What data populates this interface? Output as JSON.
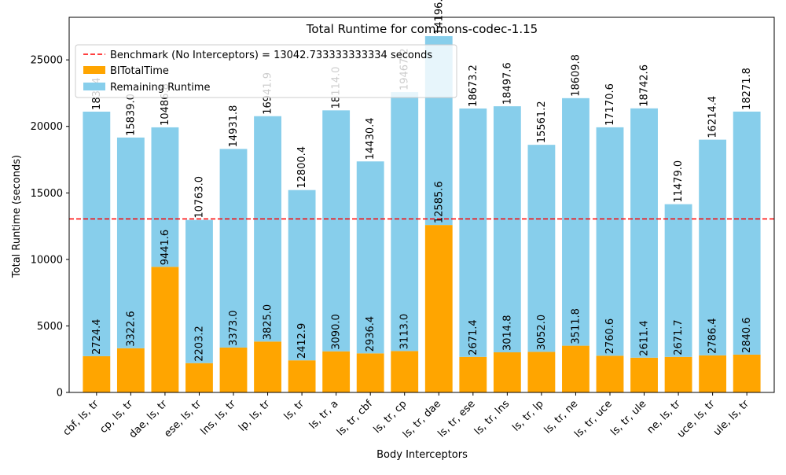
{
  "chart_data": {
    "type": "bar",
    "title": "Total Runtime for commons-codec-1.15",
    "xlabel": "Body Interceptors",
    "ylabel": "Total Runtime (seconds)",
    "ylim": [
      0,
      28200
    ],
    "yticks": [
      0,
      5000,
      10000,
      15000,
      20000,
      25000
    ],
    "stacked": true,
    "grid": false,
    "legend_position": "top-left",
    "categories": [
      "cbf, ls, tr",
      "cp, ls, tr",
      "dae, ls, tr",
      "ese, ls, tr",
      "lns, ls, tr",
      "lp, ls, tr",
      "ls, tr",
      "ls, tr, a",
      "ls, tr, cbf",
      "ls, tr, cp",
      "ls, tr, dae",
      "ls, tr, ese",
      "ls, tr, lns",
      "ls, tr, lp",
      "ls, tr, ne",
      "ls, tr, uce",
      "ls, tr, ule",
      "ne, ls, tr",
      "uce, ls, tr",
      "ule, ls, tr"
    ],
    "series": [
      {
        "name": "BITotalTime",
        "color": "#ffa500",
        "values": [
          2724.4,
          3322.6,
          9441.6,
          2203.2,
          3373.0,
          3825.0,
          2412.9,
          3090.0,
          2936.4,
          3113.0,
          12585.6,
          2671.4,
          3014.8,
          3052.0,
          3511.8,
          2760.6,
          2611.4,
          2671.7,
          2786.4,
          2840.6
        ],
        "labels": [
          "2724.4",
          "3322.6",
          "9441.6",
          "2203.2",
          "3373.0",
          "3825.0",
          "2412.9",
          "3090.0",
          "2936.4",
          "3113.0",
          "12585.6",
          "2671.4",
          "3014.8",
          "3052.0",
          "3511.8",
          "2760.6",
          "2611.4",
          "2671.7",
          "2786.4",
          "2840.6"
        ]
      },
      {
        "name": "Remaining Runtime",
        "color": "#87ceeb",
        "values": [
          18384.0,
          15839.0,
          10486.8,
          10763.0,
          14931.8,
          16941.9,
          12800.4,
          18114.0,
          14430.4,
          19467.2,
          14196.0,
          18673.2,
          18497.6,
          15561.2,
          18609.8,
          17170.6,
          18742.6,
          11479.0,
          16214.4,
          18271.8
        ],
        "labels": [
          "18384",
          "15839.0",
          "10486.8",
          "10763.0",
          "14931.8",
          "16941.9",
          "12800.4",
          "18114.0",
          "14430.4",
          "19467.2",
          "14196.0",
          "18673.2",
          "18497.6",
          "15561.2",
          "18609.8",
          "17170.6",
          "18742.6",
          "11479.0",
          "16214.4",
          "18271.8"
        ]
      }
    ],
    "benchmark": {
      "name": "Benchmark (No Interceptors) = 13042.733333333334 seconds",
      "value": 13042.733333333334,
      "color": "#ff0000"
    }
  }
}
